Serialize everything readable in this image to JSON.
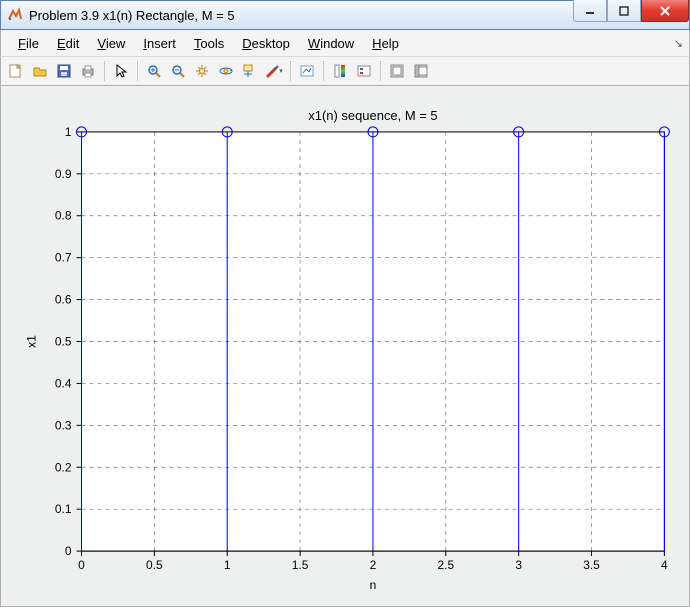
{
  "window": {
    "title": "Problem 3.9 x1(n) Rectangle, M = 5"
  },
  "menus": [
    "File",
    "Edit",
    "View",
    "Insert",
    "Tools",
    "Desktop",
    "Window",
    "Help"
  ],
  "chart": {
    "type": "stem",
    "title": "x1(n) sequence, M = 5",
    "xlabel": "n",
    "ylabel": "x1",
    "xlim": [
      0,
      4
    ],
    "ylim": [
      0,
      1
    ],
    "xticks": [
      0,
      0.5,
      1,
      1.5,
      2,
      2.5,
      3,
      3.5,
      4
    ],
    "yticks": [
      0,
      0.1,
      0.2,
      0.3,
      0.4,
      0.5,
      0.6,
      0.7,
      0.8,
      0.9,
      1
    ],
    "grid": true,
    "grid_style": "dashed",
    "grid_color": "#000000",
    "grid_opacity": 0.55,
    "axis_color": "#000000",
    "background_color": "#ffffff",
    "figure_background": "#eef0f0",
    "stem_color": "#0000ff",
    "marker": "circle",
    "marker_edge": "#0000ff",
    "marker_fill": "none",
    "marker_size": 5,
    "stems": {
      "x": [
        0,
        1,
        2,
        3,
        4
      ],
      "y": [
        1,
        1,
        1,
        1,
        1
      ]
    },
    "tick_fontsize": 12,
    "title_fontsize": 13,
    "label_fontsize": 12
  },
  "win_controls": {
    "min": "min",
    "max": "max",
    "close": "close"
  }
}
